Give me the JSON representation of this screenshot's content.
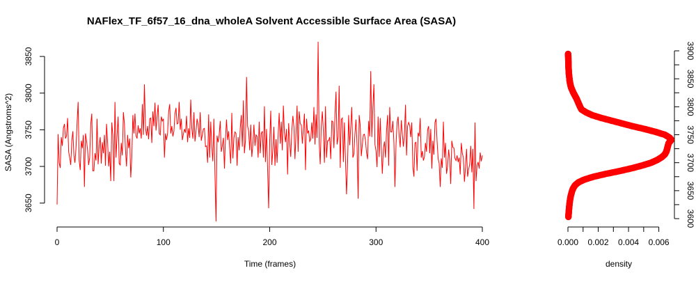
{
  "chart_data": [
    {
      "type": "line",
      "title": "NAFlex_TF_6f57_16_dna_wholeA Solvent Accessible Surface Area (SASA)",
      "xlabel": "Time (frames)",
      "ylabel": "SASA (Angstroms^2)",
      "xlim": [
        0,
        400
      ],
      "ylim": [
        3625,
        3870
      ],
      "xticks": [
        "0",
        "100",
        "200",
        "300",
        "400"
      ],
      "yticks": [
        "3650",
        "3700",
        "3750",
        "3800",
        "3850"
      ],
      "grid": false,
      "series_color": "#ff0000",
      "series": [
        {
          "values": [
            3648,
            3744,
            3705,
            3698,
            3740,
            3728,
            3752,
            3758,
            3738,
            3742,
            3766,
            3720,
            3712,
            3702,
            3735,
            3748,
            3715,
            3705,
            3725,
            3760,
            3788,
            3708,
            3695,
            3735,
            3725,
            3743,
            3672,
            3745,
            3735,
            3722,
            3702,
            3712,
            3758,
            3772,
            3694,
            3694,
            3718,
            3708,
            3765,
            3703,
            3728,
            3740,
            3704,
            3733,
            3718,
            3743,
            3701,
            3758,
            3733,
            3700,
            3720,
            3680,
            3760,
            3742,
            3680,
            3788,
            3712,
            3742,
            3768,
            3704,
            3702,
            3732,
            3715,
            3774,
            3758,
            3722,
            3700,
            3743,
            3725,
            3738,
            3685,
            3712,
            3770,
            3745,
            3772,
            3742,
            3738,
            3756,
            3745,
            3752,
            3738,
            3785,
            3743,
            3812,
            3753,
            3742,
            3755,
            3737,
            3765,
            3766,
            3732,
            3775,
            3755,
            3787,
            3749,
            3768,
            3784,
            3745,
            3743,
            3768,
            3762,
            3765,
            3712,
            3745,
            3736,
            3745,
            3775,
            3785,
            3745,
            3755,
            3741,
            3748,
            3772,
            3780,
            3758,
            3759,
            3788,
            3750,
            3765,
            3736,
            3744,
            3751,
            3746,
            3769,
            3733,
            3752,
            3739,
            3791,
            3752,
            3738,
            3774,
            3734,
            3748,
            3765,
            3757,
            3740,
            3774,
            3735,
            3743,
            3751,
            3752,
            3727,
            3728,
            3705,
            3771,
            3712,
            3761,
            3726,
            3707,
            3765,
            3689,
            3625,
            3742,
            3733,
            3743,
            3762,
            3720,
            3728,
            3739,
            3697,
            3738,
            3764,
            3736,
            3748,
            3724,
            3704,
            3773,
            3711,
            3739,
            3747,
            3745,
            3701,
            3740,
            3722,
            3752,
            3770,
            3727,
            3790,
            3718,
            3736,
            3822,
            3755,
            3748,
            3722,
            3757,
            3713,
            3729,
            3757,
            3728,
            3743,
            3741,
            3712,
            3761,
            3718,
            3745,
            3748,
            3712,
            3782,
            3706,
            3751,
            3697,
            3643,
            3735,
            3776,
            3702,
            3722,
            3754,
            3701,
            3737,
            3705,
            3741,
            3773,
            3731,
            3761,
            3722,
            3783,
            3746,
            3733,
            3751,
            3689,
            3759,
            3732,
            3713,
            3748,
            3769,
            3754,
            3710,
            3745,
            3783,
            3720,
            3775,
            3759,
            3756,
            3731,
            3752,
            3772,
            3695,
            3765,
            3745,
            3749,
            3734,
            3737,
            3760,
            3738,
            3781,
            3730,
            3771,
            3739,
            3870,
            3733,
            3703,
            3755,
            3775,
            3747,
            3705,
            3782,
            3712,
            3735,
            3735,
            3740,
            3710,
            3762,
            3761,
            3725,
            3770,
            3802,
            3730,
            3740,
            3810,
            3698,
            3764,
            3766,
            3706,
            3760,
            3708,
            3662,
            3705,
            3770,
            3729,
            3754,
            3781,
            3712,
            3717,
            3745,
            3764,
            3728,
            3656,
            3770,
            3756,
            3714,
            3729,
            3743,
            3744,
            3735,
            3719,
            3710,
            3762,
            3741,
            3830,
            3740,
            3780,
            3812,
            3730,
            3721,
            3699,
            3768,
            3713,
            3766,
            3725,
            3690,
            3724,
            3734,
            3712,
            3749,
            3770,
            3701,
            3781,
            3747,
            3747,
            3762,
            3733,
            3672,
            3729,
            3760,
            3768,
            3742,
            3726,
            3763,
            3744,
            3727,
            3743,
            3784,
            3715,
            3755,
            3760,
            3756,
            3740,
            3760,
            3700,
            3686,
            3732,
            3733,
            3694,
            3746,
            3741,
            3766,
            3712,
            3721,
            3708,
            3713,
            3732,
            3720,
            3750,
            3755,
            3718,
            3751,
            3697,
            3735,
            3716,
            3760,
            3765,
            3735,
            3711,
            3704,
            3672,
            3711,
            3698,
            3761,
            3712,
            3732,
            3690,
            3700,
            3723,
            3709,
            3676,
            3735,
            3726,
            3725,
            3711,
            3708,
            3715,
            3706,
            3712,
            3689,
            3732,
            3718,
            3712,
            3679,
            3698,
            3724,
            3686,
            3696,
            3703,
            3728,
            3692,
            3724,
            3642,
            3760,
            3680,
            3701,
            3706,
            3697,
            3719,
            3707,
            3715
          ]
        }
      ]
    },
    {
      "type": "line",
      "title": "",
      "xlabel": "density",
      "ylabel": "",
      "xlim": [
        0,
        0.0068
      ],
      "ylim": [
        3600,
        3900
      ],
      "xticks": [
        "0.000",
        "0.002",
        "0.004",
        "0.006"
      ],
      "yticks": [
        "3600",
        "3650",
        "3700",
        "3750",
        "3800",
        "3850",
        "3900"
      ],
      "y_axis_side": "right",
      "grid": false,
      "series_color": "#ff0000",
      "series": [
        {
          "y": [
            3603,
            3610,
            3620,
            3630,
            3640,
            3650,
            3655,
            3660,
            3665,
            3670,
            3675,
            3680,
            3685,
            3690,
            3695,
            3700,
            3705,
            3710,
            3715,
            3720,
            3725,
            3730,
            3735,
            3740,
            3742,
            3745,
            3750,
            3755,
            3760,
            3765,
            3770,
            3775,
            3780,
            3785,
            3790,
            3795,
            3800,
            3805,
            3810,
            3815,
            3820,
            3825,
            3830,
            3835,
            3840,
            3845,
            3850,
            3860,
            3870,
            3880,
            3890,
            3895
          ],
          "x": [
            3e-05,
            5e-05,
            8e-05,
            0.00012,
            0.00018,
            0.00028,
            0.00036,
            0.00048,
            0.0007,
            0.0011,
            0.0017,
            0.0025,
            0.0034,
            0.0042,
            0.0049,
            0.0055,
            0.0059,
            0.0062,
            0.0064,
            0.0065,
            0.00655,
            0.0066,
            0.00665,
            0.0068,
            0.0068,
            0.0067,
            0.0064,
            0.0058,
            0.0051,
            0.0043,
            0.0036,
            0.0029,
            0.0022,
            0.0016,
            0.0012,
            0.0009,
            0.0008,
            0.00072,
            0.00064,
            0.00056,
            0.00046,
            0.00036,
            0.00028,
            0.0002,
            0.00016,
            0.00012,
            0.0001,
            6e-05,
            4e-05,
            3e-05,
            2e-05,
            1e-05
          ]
        }
      ]
    }
  ]
}
